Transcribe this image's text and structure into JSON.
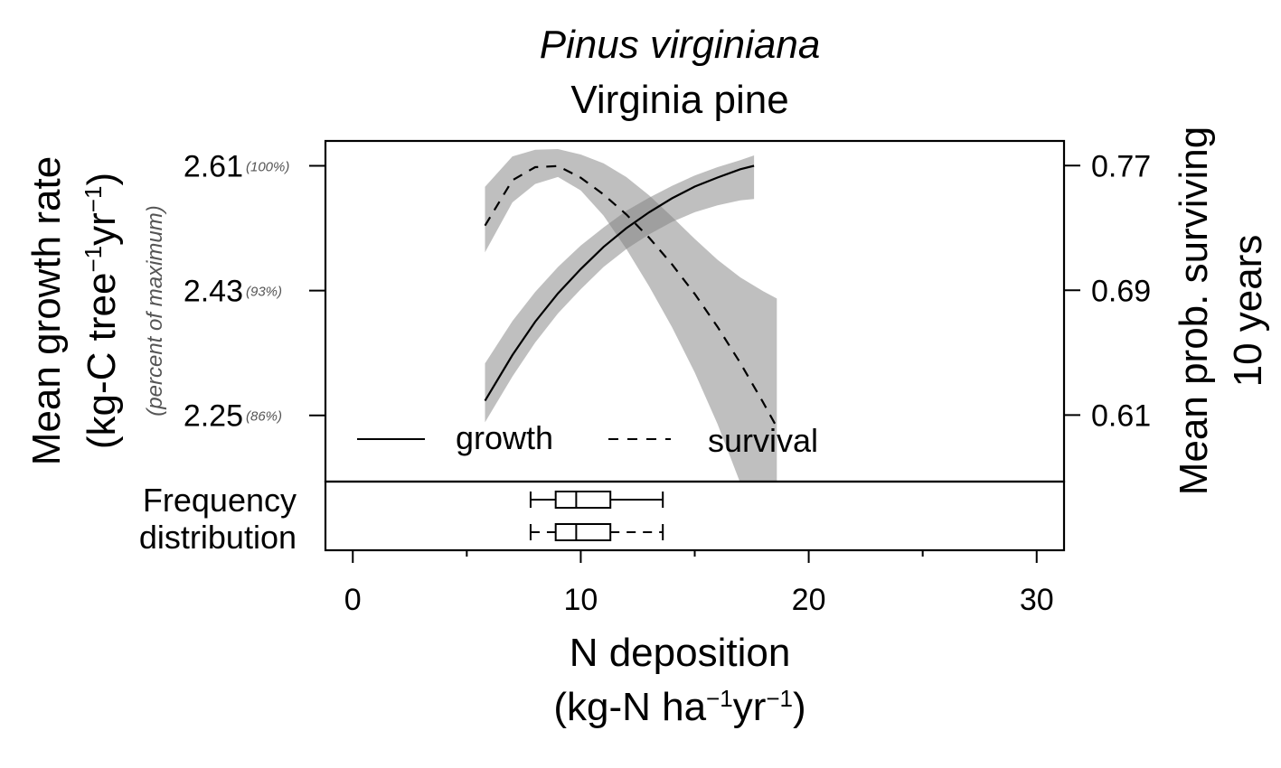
{
  "chart_data": {
    "type": "line",
    "title": "Pinus virginiana",
    "subtitle": "Virginia pine",
    "xlabel_line1": "N deposition",
    "xlabel_line2": {
      "pre": "(kg-N ha",
      "exp1": "−1",
      "mid": "yr",
      "exp2": "−1",
      "post": ")"
    },
    "ylabel_left_line1": "Mean growth rate",
    "ylabel_left_line2": {
      "pre": "(kg-C tree",
      "exp1": "−1",
      "mid": "yr",
      "exp2": "−1",
      "post": ")"
    },
    "ylabel_left_sub": "(percent of maximum)",
    "ylabel_right_line1": "Mean prob. surviving",
    "ylabel_right_line2": "10 years",
    "xlim": [
      -1.2,
      31.2
    ],
    "x_ticks": [
      0,
      10,
      20,
      30
    ],
    "x_minor_ticks": [
      5,
      15,
      25
    ],
    "x_tick_labels": [
      "0",
      "10",
      "20",
      "30"
    ],
    "ylim_left": [
      2.1545,
      2.6458
    ],
    "y_left_ticks": [
      2.25,
      2.43,
      2.61
    ],
    "y_left_tick_labels": [
      "2.25",
      "2.43",
      "2.61"
    ],
    "y_left_pct_labels": [
      "(86%)",
      "(93%)",
      "(100%)"
    ],
    "ylim_right": [
      0.5673,
      0.7858
    ],
    "y_right_ticks": [
      0.61,
      0.69,
      0.77
    ],
    "y_right_tick_labels": [
      "0.61",
      "0.69",
      "0.77"
    ],
    "grid": false,
    "legend_position": "bottom-left",
    "series": [
      {
        "name": "growth",
        "axis": "left",
        "line_style": "solid",
        "x": [
          5.8,
          7.0,
          8.0,
          9.0,
          10.0,
          11.0,
          12.0,
          13.0,
          14.0,
          15.0,
          16.0,
          17.0,
          17.6
        ],
        "y": [
          2.271,
          2.337,
          2.385,
          2.426,
          2.461,
          2.493,
          2.52,
          2.543,
          2.563,
          2.58,
          2.593,
          2.605,
          2.61
        ],
        "lower": [
          2.24,
          2.306,
          2.355,
          2.397,
          2.432,
          2.464,
          2.49,
          2.511,
          2.529,
          2.543,
          2.553,
          2.56,
          2.562
        ],
        "upper": [
          2.325,
          2.386,
          2.428,
          2.464,
          2.495,
          2.521,
          2.545,
          2.564,
          2.581,
          2.596,
          2.608,
          2.618,
          2.625
        ]
      },
      {
        "name": "survival",
        "axis": "right",
        "line_style": "dashed",
        "x": [
          5.8,
          7.0,
          8.0,
          9.0,
          10.0,
          11.0,
          12.0,
          13.0,
          14.0,
          15.0,
          16.0,
          17.0,
          18.0,
          18.6
        ],
        "y": [
          0.7315,
          0.7606,
          0.769,
          0.7697,
          0.7622,
          0.7515,
          0.7386,
          0.7237,
          0.7067,
          0.6877,
          0.6666,
          0.6434,
          0.6181,
          0.6022
        ],
        "lower": [
          0.7144,
          0.7464,
          0.7582,
          0.7627,
          0.7541,
          0.7379,
          0.7165,
          0.6925,
          0.6664,
          0.6373,
          0.6043,
          0.5664,
          0.5664,
          0.5664
        ],
        "upper": [
          0.7564,
          0.7759,
          0.7801,
          0.7806,
          0.7771,
          0.7714,
          0.7626,
          0.7509,
          0.7372,
          0.723,
          0.7096,
          0.6983,
          0.6895,
          0.6847
        ]
      }
    ],
    "frequency_distribution": {
      "label_line1": "Frequency",
      "label_line2": "distribution",
      "boxplots": [
        {
          "series": "growth",
          "whisker_style": "solid",
          "min": 7.8,
          "q1": 8.9,
          "median": 9.8,
          "q3": 11.3,
          "max": 13.6
        },
        {
          "series": "survival",
          "whisker_style": "dashed",
          "min": 7.8,
          "q1": 8.9,
          "median": 9.8,
          "q3": 11.3,
          "max": 13.6
        }
      ]
    },
    "legend": [
      {
        "label": "growth",
        "line_style": "solid"
      },
      {
        "label": "survival",
        "line_style": "dashed"
      }
    ],
    "colors": {
      "band": "#bebebe",
      "line": "#000000",
      "pct_text": "#555555"
    }
  }
}
